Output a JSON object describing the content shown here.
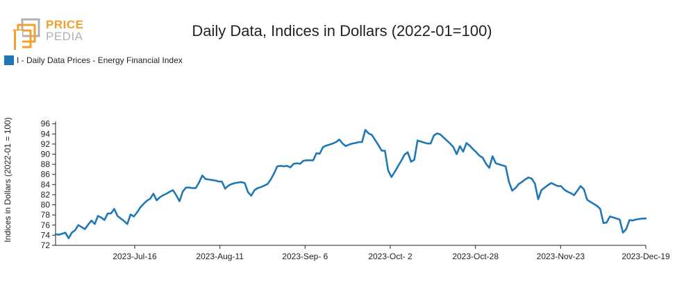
{
  "logo": {
    "line1": "PRICE",
    "line2": "PEDIA"
  },
  "colors": {
    "series": "#1f77b4",
    "logo_orange": "#f0a030",
    "logo_gray": "#b0b0b0"
  },
  "chart_data": {
    "type": "line",
    "title": "Daily Data, Indices in Dollars (2022-01=100)",
    "ylabel": "Indices in Dollars (2022-01 = 100)",
    "xlabel": "",
    "legend_position": "top-left",
    "grid": false,
    "ylim": [
      72,
      96.5
    ],
    "y_ticks": [
      72,
      74,
      76,
      78,
      80,
      82,
      84,
      86,
      88,
      90,
      92,
      94,
      96
    ],
    "x_ticks": [
      "2023-Jul-16",
      "2023-Aug-11",
      "2023-Sep- 6",
      "2023-Oct- 2",
      "2023-Oct-28",
      "2023-Nov-23",
      "2023-Dec-19"
    ],
    "series": [
      {
        "name": "I - Daily Data Prices - Energy Financial Index",
        "color": "#1f77b4",
        "values": [
          74.2,
          74.1,
          74.3,
          74.5,
          73.4,
          74.5,
          75.0,
          76.0,
          75.6,
          75.2,
          76.1,
          76.9,
          76.2,
          77.8,
          77.5,
          77.0,
          78.3,
          78.3,
          79.2,
          77.8,
          77.3,
          76.8,
          76.2,
          78.1,
          77.7,
          78.5,
          79.5,
          80.2,
          80.8,
          81.2,
          82.2,
          80.9,
          81.5,
          81.9,
          82.2,
          82.6,
          82.9,
          81.9,
          80.7,
          82.6,
          83.4,
          83.4,
          83.3,
          83.3,
          84.4,
          85.8,
          85.1,
          85.0,
          84.9,
          84.8,
          84.6,
          84.6,
          83.2,
          83.8,
          84.1,
          84.3,
          84.4,
          84.5,
          84.3,
          82.5,
          81.8,
          82.9,
          83.3,
          83.5,
          83.8,
          84.1,
          85.0,
          86.2,
          87.6,
          87.7,
          87.6,
          87.7,
          87.4,
          88.1,
          88.2,
          88.1,
          88.7,
          88.8,
          88.8,
          88.8,
          90.2,
          90.1,
          91.4,
          91.7,
          91.9,
          92.1,
          92.4,
          92.9,
          92.1,
          91.6,
          91.9,
          92.1,
          92.2,
          92.4,
          92.4,
          94.8,
          94.1,
          93.8,
          92.8,
          91.8,
          90.7,
          90.7,
          86.8,
          85.5,
          86.5,
          87.6,
          88.7,
          89.9,
          90.4,
          88.5,
          88.9,
          92.7,
          92.5,
          92.3,
          92.1,
          92.1,
          93.7,
          94.1,
          93.9,
          93.3,
          92.7,
          92.1,
          91.4,
          90.0,
          91.6,
          90.5,
          92.2,
          91.7,
          91.0,
          90.4,
          89.7,
          89.3,
          88.1,
          87.3,
          89.6,
          88.2,
          88.0,
          87.8,
          87.6,
          84.6,
          82.8,
          83.3,
          84.1,
          84.5,
          85.0,
          85.4,
          85.2,
          84.2,
          81.1,
          82.9,
          83.4,
          83.9,
          84.3,
          84.0,
          83.7,
          83.7,
          83.0,
          82.6,
          82.3,
          81.9,
          82.8,
          83.7,
          83.1,
          81.0,
          80.6,
          80.2,
          79.8,
          79.2,
          76.4,
          76.5,
          77.7,
          77.5,
          77.3,
          77.1,
          74.5,
          75.2,
          77.0,
          76.9,
          77.1,
          77.2,
          77.3,
          77.3
        ]
      }
    ]
  }
}
